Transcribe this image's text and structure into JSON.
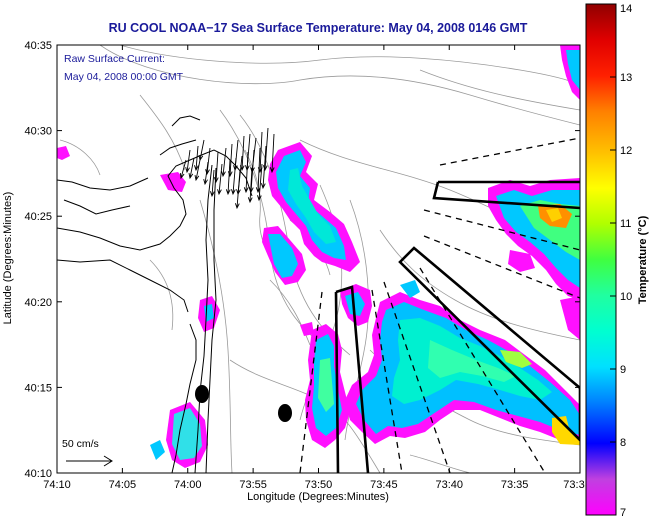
{
  "chart_data": {
    "type": "heatmap",
    "title": "RU COOL  NOAA−17  Sea Surface Temperature:  May 04, 2008 0146 GMT",
    "annotation_line1": "Raw Surface Current:",
    "annotation_line2": "May 04, 2008 00:00 GMT",
    "xlabel": "Longitude (Degrees:Minutes)",
    "ylabel": "Latitude (Degrees:Minutes)",
    "x_ticks": [
      "74:10",
      "74:05",
      "74:00",
      "73:55",
      "73:50",
      "73:45",
      "73:40",
      "73:35",
      "73:3"
    ],
    "y_ticks": [
      "40:10",
      "40:15",
      "40:20",
      "40:25",
      "40:30",
      "40:35"
    ],
    "xlim": [
      -74.1667,
      -73.5
    ],
    "ylim": [
      40.1667,
      40.5833
    ],
    "colorbar": {
      "label": "Temperature (°C)",
      "range": [
        7,
        14
      ],
      "ticks": [
        "7",
        "8",
        "9",
        "10",
        "11",
        "12",
        "13",
        "14"
      ]
    },
    "vector_scale_label": "50 cm/s",
    "colors": {
      "title": "#1a1a9a",
      "land": "#ffffff",
      "coast": "#000000",
      "bathymetry": "#999999",
      "missing": "#ffffff"
    }
  }
}
